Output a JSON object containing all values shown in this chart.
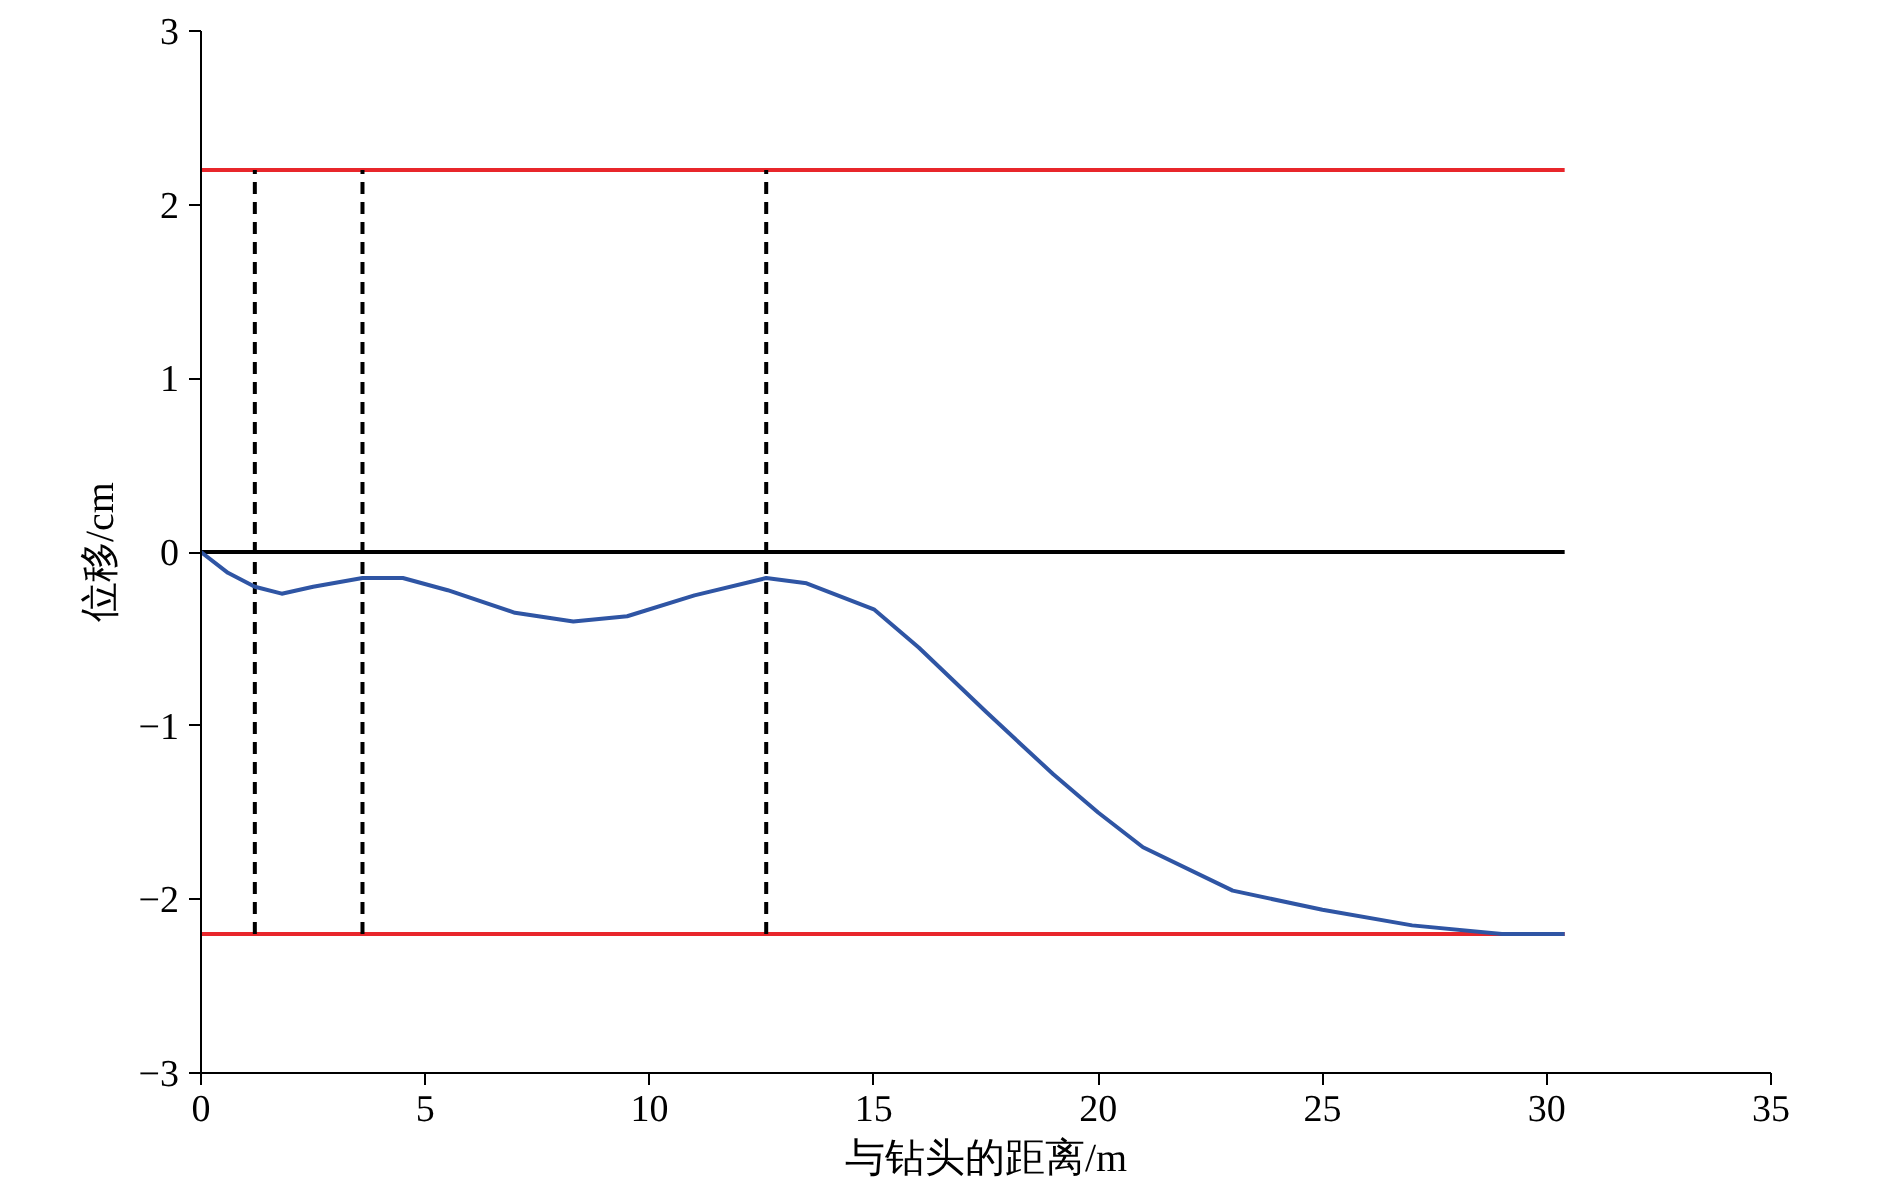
{
  "chart_data": {
    "type": "line",
    "xlabel": "与钻头的距离/m",
    "ylabel": "位移/cm",
    "xlim": [
      0,
      35
    ],
    "xticks": [
      0,
      5,
      10,
      15,
      20,
      25,
      30,
      35
    ],
    "ylim": [
      -3,
      3
    ],
    "yticks": [
      {
        "value": -3,
        "label": "−3"
      },
      {
        "value": -2,
        "label": "−2"
      },
      {
        "value": -1,
        "label": "−1"
      },
      0,
      1,
      2,
      3
    ],
    "grid": false,
    "series": [
      {
        "color": "#e8262b",
        "x": [
          0,
          30.4
        ],
        "values": [
          2.2,
          2.2
        ]
      },
      {
        "color": "#e8262b",
        "x": [
          0,
          30.4
        ],
        "values": [
          -2.2,
          -2.2
        ]
      },
      {
        "color": "#000000",
        "x": [
          0,
          30.4
        ],
        "values": [
          0,
          0
        ]
      },
      {
        "color": "#000000",
        "line_style": "dashed",
        "x": [
          1.2,
          1.2
        ],
        "values": [
          -2.2,
          2.2
        ]
      },
      {
        "color": "#000000",
        "line_style": "dashed",
        "x": [
          3.6,
          3.6
        ],
        "values": [
          -2.2,
          2.2
        ]
      },
      {
        "color": "#000000",
        "line_style": "dashed",
        "x": [
          12.6,
          12.6
        ],
        "values": [
          -2.2,
          2.2
        ]
      },
      {
        "color": "#2f55a4",
        "x": [
          0,
          0.6,
          1.2,
          1.8,
          2.5,
          3.6,
          4.5,
          5.5,
          7,
          8.3,
          9.5,
          11,
          12.6,
          13.5,
          15,
          16,
          17.5,
          19,
          20,
          21,
          23,
          25,
          27,
          29,
          30.4
        ],
        "values": [
          0,
          -0.12,
          -0.2,
          -0.24,
          -0.2,
          -0.15,
          -0.15,
          -0.22,
          -0.35,
          -0.4,
          -0.37,
          -0.25,
          -0.15,
          -0.18,
          -0.33,
          -0.55,
          -0.92,
          -1.28,
          -1.5,
          -1.7,
          -1.95,
          -2.06,
          -2.15,
          -2.2,
          -2.2
        ]
      }
    ]
  }
}
